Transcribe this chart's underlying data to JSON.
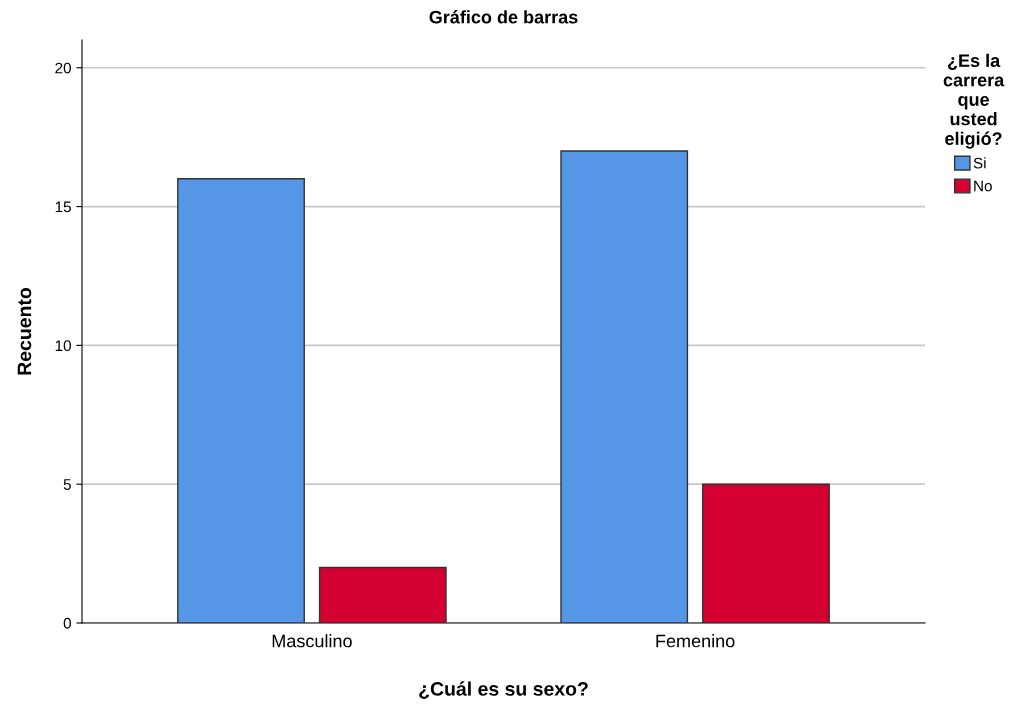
{
  "chart_data": {
    "type": "bar",
    "title": "Gráfico de barras",
    "xlabel": "¿Cuál es su sexo?",
    "ylabel": "Recuento",
    "legend_title": "¿Es la carrera que usted eligió?",
    "categories": [
      "Masculino",
      "Femenino"
    ],
    "series": [
      {
        "name": "Si",
        "color": "#5596e6",
        "values": [
          16,
          17
        ]
      },
      {
        "name": "No",
        "color": "#d50032",
        "values": [
          2,
          5
        ]
      }
    ],
    "ylim": [
      0,
      21
    ],
    "yticks": [
      0,
      5,
      10,
      15,
      20
    ],
    "grid": "y",
    "legend": "right"
  }
}
